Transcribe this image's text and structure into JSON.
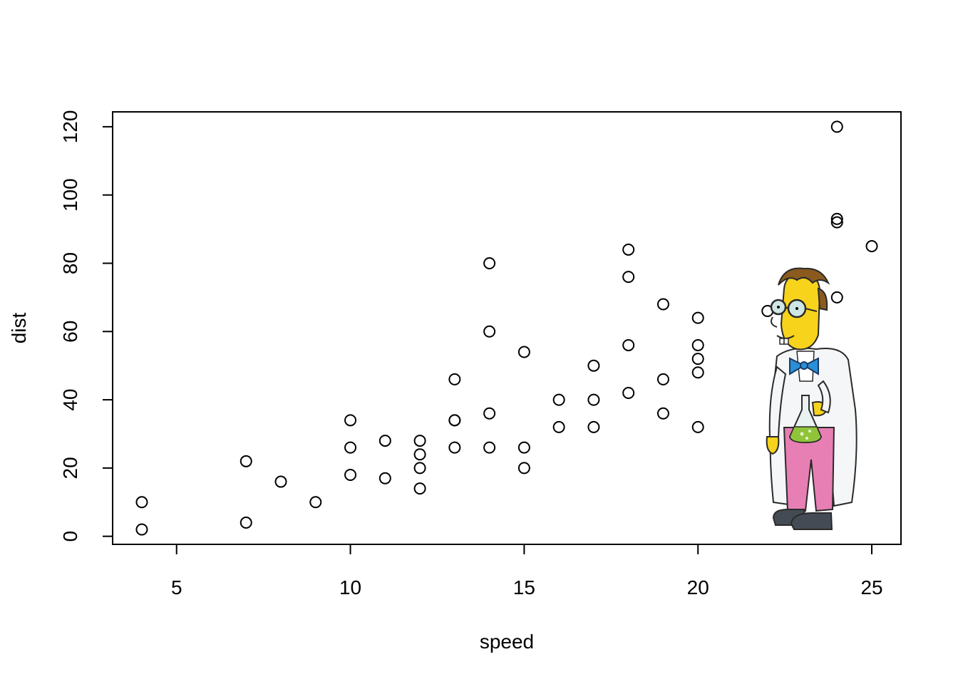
{
  "chart_data": {
    "type": "scatter",
    "title": "",
    "xlabel": "speed",
    "ylabel": "dist",
    "xlim": [
      3.16,
      25.84
    ],
    "ylim": [
      -2.36,
      124.36
    ],
    "xticks": [
      5,
      10,
      15,
      20,
      25
    ],
    "yticks": [
      0,
      20,
      40,
      60,
      80,
      100,
      120
    ],
    "grid": false,
    "marker": "open-circle",
    "colors": {
      "point": "#000000",
      "background": "#ffffff"
    },
    "x": [
      4,
      4,
      7,
      7,
      8,
      9,
      10,
      10,
      10,
      11,
      11,
      12,
      12,
      12,
      12,
      13,
      13,
      13,
      13,
      14,
      14,
      14,
      14,
      15,
      15,
      15,
      16,
      16,
      17,
      17,
      17,
      18,
      18,
      18,
      18,
      19,
      19,
      19,
      20,
      20,
      20,
      20,
      20,
      22,
      23,
      24,
      24,
      24,
      24,
      25
    ],
    "y": [
      2,
      10,
      4,
      22,
      16,
      10,
      18,
      26,
      34,
      17,
      28,
      14,
      20,
      24,
      28,
      26,
      34,
      34,
      46,
      26,
      36,
      60,
      80,
      20,
      26,
      54,
      32,
      40,
      32,
      40,
      50,
      42,
      56,
      76,
      84,
      36,
      46,
      68,
      32,
      48,
      52,
      56,
      64,
      66,
      54,
      70,
      92,
      93,
      120,
      85
    ]
  },
  "decoration": {
    "character": "scientist-character-icon"
  }
}
